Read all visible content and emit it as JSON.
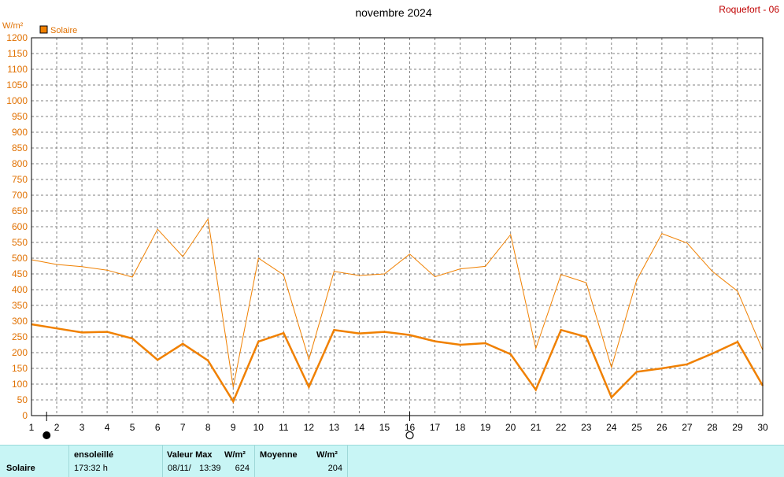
{
  "header": {
    "title": "novembre 2024",
    "station": "Roquefort - 06"
  },
  "legend": {
    "label": "Solaire"
  },
  "colors": {
    "series": "#f08000",
    "grid": "#808080",
    "axis_text": "#e07000",
    "footer_bg": "#c8f5f5"
  },
  "moon_icons": [
    "new-moon-icon",
    "full-moon-icon"
  ],
  "chart_data": {
    "type": "line",
    "ylabel": "W/m²",
    "ylim": [
      0,
      1200
    ],
    "ystep": 50,
    "x_ticks": [
      "1",
      "2",
      "3",
      "4",
      "5",
      "6",
      "7",
      "8",
      "9",
      "10",
      "11",
      "12",
      "13",
      "14",
      "15",
      "16",
      "17",
      "18",
      "19",
      "20",
      "21",
      "22",
      "23",
      "24",
      "25",
      "26",
      "27",
      "28",
      "29",
      "30"
    ],
    "x": [
      1,
      2,
      3,
      4,
      5,
      6,
      7,
      8,
      9,
      10,
      11,
      12,
      13,
      14,
      15,
      16,
      17,
      18,
      19,
      20,
      21,
      22,
      23,
      24,
      25,
      26,
      27,
      28,
      29,
      30
    ],
    "series": [
      {
        "name": "Solaire",
        "role": "max",
        "values": [
          495,
          480,
          473,
          462,
          440,
          592,
          505,
          624,
          90,
          500,
          447,
          178,
          458,
          445,
          450,
          513,
          441,
          466,
          474,
          575,
          213,
          448,
          422,
          153,
          430,
          578,
          548,
          458,
          395,
          208
        ]
      },
      {
        "name": "Solaire",
        "role": "mean",
        "values": [
          290,
          277,
          264,
          266,
          245,
          177,
          228,
          175,
          45,
          235,
          262,
          91,
          272,
          261,
          266,
          256,
          236,
          225,
          230,
          195,
          82,
          272,
          250,
          58,
          139,
          150,
          163,
          197,
          234,
          95
        ]
      }
    ],
    "grid": true,
    "moon_phases": {
      "new_moon_day": 1.6,
      "full_moon_day": 16
    }
  },
  "footer": {
    "row_label": "Solaire",
    "sun_header": "ensoleillé",
    "sun_value": "173:32 h",
    "max_header": "Valeur Max",
    "max_unit": "W/m²",
    "max_date": "08/11/",
    "max_time": "13:39",
    "max_value": "624",
    "mean_header": "Moyenne",
    "mean_unit": "W/m²",
    "mean_value": "204"
  }
}
